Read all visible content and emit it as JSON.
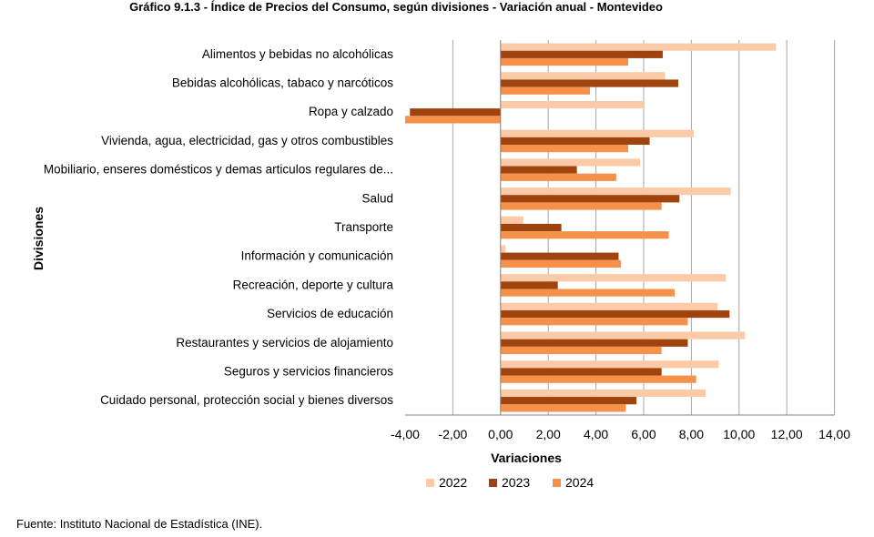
{
  "title": "Gráfico 9.1.3 - Índice de Precios del Consumo, según divisiones - Variación anual - Montevideo",
  "source": "Fuente: Instituto Nacional de Estadística (INE).",
  "chart_data": {
    "type": "bar",
    "orientation": "horizontal",
    "title": "Gráfico 9.1.3 - Índice de Precios del Consumo, según divisiones - Variación anual - Montevideo",
    "xlabel": "Variaciones",
    "ylabel": "Divisiones",
    "xlim": [
      -4,
      14
    ],
    "xticks": [
      "-4,00",
      "-2,00",
      "0,00",
      "2,00",
      "4,00",
      "6,00",
      "8,00",
      "10,00",
      "12,00",
      "14,00"
    ],
    "grid": "vertical",
    "legend_position": "bottom",
    "categories": [
      "Alimentos y bebidas no alcohólicas",
      "Bebidas alcohólicas, tabaco y narcóticos",
      "Ropa y calzado",
      "Vivienda, agua, electricidad, gas y otros combustibles",
      "Mobiliario, enseres domésticos y demas articulos regulares de...",
      "Salud",
      "Transporte",
      "Información y comunicación",
      "Recreación, deporte y cultura",
      "Servicios de educación",
      "Restaurantes y servicios de alojamiento",
      "Seguros y servicios financieros",
      "Cuidado personal, protección social y bienes diversos"
    ],
    "series": [
      {
        "name": "2022",
        "color": "#FBCBA8",
        "values": [
          11.55,
          6.9,
          6.0,
          8.1,
          5.85,
          9.65,
          0.95,
          0.2,
          9.45,
          9.1,
          10.25,
          9.15,
          8.6
        ]
      },
      {
        "name": "2023",
        "color": "#A0440F",
        "values": [
          6.8,
          7.45,
          -3.8,
          6.25,
          3.2,
          7.5,
          2.55,
          4.95,
          2.4,
          9.6,
          7.85,
          6.75,
          5.7
        ]
      },
      {
        "name": "2024",
        "color": "#F5914A",
        "values": [
          5.35,
          3.75,
          -4.0,
          5.35,
          4.85,
          6.75,
          7.05,
          5.05,
          7.3,
          7.85,
          6.75,
          8.2,
          5.25
        ]
      }
    ]
  }
}
